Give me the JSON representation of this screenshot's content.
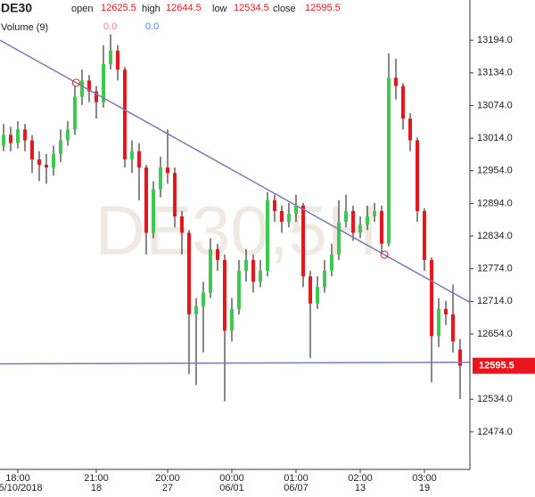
{
  "chart_data": {
    "type": "candlestick",
    "symbol": "DE30",
    "watermark": "DE30,5H",
    "header": {
      "open_label": "open",
      "open": 12625.5,
      "high_label": "high",
      "high": 12644.5,
      "low_label": "low",
      "low": 12534.5,
      "close_label": "close",
      "close": 12595.5
    },
    "volume": {
      "label": "Volume (9)",
      "values": [
        {
          "value": 0,
          "label": "0.0"
        },
        {
          "value": 0,
          "label": "0.0"
        }
      ]
    },
    "price_tag": 12595.5,
    "up_color": "#3dc951",
    "down_color": "#e8161a",
    "ylim": [
      12405,
      13268
    ],
    "yticks": [
      {
        "value": 13194,
        "label": "13194.0"
      },
      {
        "value": 13134,
        "label": "13134.0"
      },
      {
        "value": 13074,
        "label": "13074.0"
      },
      {
        "value": 13014,
        "label": "13014.0"
      },
      {
        "value": 12954,
        "label": "12954.0"
      },
      {
        "value": 12894,
        "label": "12894.0"
      },
      {
        "value": 12834,
        "label": "12834.0"
      },
      {
        "value": 12774,
        "label": "12774.0"
      },
      {
        "value": 12714,
        "label": "12714.0"
      },
      {
        "value": 12654,
        "label": "12654.0"
      },
      {
        "value": 12534,
        "label": "12534.0"
      },
      {
        "value": 12474,
        "label": "12474.0"
      }
    ],
    "categories": [
      null,
      null,
      {
        "time": "18:00",
        "date": "05/10/2018"
      },
      null,
      null,
      null,
      null,
      null,
      null,
      null,
      null,
      null,
      null,
      {
        "time": "21:00",
        "date": "18"
      },
      null,
      null,
      null,
      null,
      null,
      null,
      null,
      null,
      null,
      {
        "time": "20:00",
        "date": "27"
      },
      null,
      null,
      null,
      null,
      null,
      null,
      null,
      null,
      {
        "time": "00:00",
        "date": "06/01"
      },
      null,
      null,
      null,
      null,
      null,
      null,
      null,
      null,
      {
        "time": "01:00",
        "date": "06/07"
      },
      null,
      null,
      null,
      null,
      null,
      null,
      null,
      null,
      {
        "time": "02:00",
        "date": "13"
      },
      null,
      null,
      null,
      null,
      null,
      null,
      null,
      null,
      {
        "time": "03:00",
        "date": "19"
      },
      null,
      null,
      null,
      null,
      null
    ],
    "open": [
      13000,
      13020,
      13005,
      13030,
      13010,
      12975,
      12965,
      12960,
      12985,
      13010,
      13030,
      13090,
      13120,
      13100,
      13080,
      13150,
      13175,
      13140,
      12975,
      12990,
      12960,
      12840,
      12920,
      12960,
      12950,
      12870,
      12840,
      12690,
      12705,
      12730,
      12810,
      12790,
      12660,
      12700,
      12770,
      12790,
      12750,
      12770,
      12900,
      12880,
      12860,
      12875,
      12890,
      12760,
      12710,
      12740,
      12770,
      12800,
      12860,
      12880,
      12840,
      12855,
      12870,
      12880,
      12820,
      13125,
      13110,
      13050,
      13010,
      12880,
      12790,
      12650,
      12700,
      12690,
      12625.5
    ],
    "high": [
      13040,
      13035,
      13045,
      13040,
      13020,
      12990,
      12985,
      13000,
      13030,
      13045,
      13110,
      13140,
      13130,
      13110,
      13185,
      13205,
      13185,
      13145,
      13010,
      13005,
      12965,
      12935,
      12980,
      13030,
      12960,
      12880,
      12845,
      12720,
      12750,
      12830,
      12820,
      12800,
      12720,
      12790,
      12810,
      12800,
      12790,
      12915,
      12910,
      12890,
      12895,
      12910,
      12895,
      12770,
      12760,
      12790,
      12820,
      12900,
      12910,
      12890,
      12870,
      12890,
      12895,
      12890,
      13170,
      13160,
      13115,
      13060,
      13015,
      12885,
      12795,
      12720,
      12715,
      12745,
      12644.5
    ],
    "low": [
      12990,
      12990,
      12995,
      12990,
      12950,
      12935,
      12930,
      12945,
      12970,
      13000,
      13020,
      13075,
      13080,
      13050,
      13070,
      13140,
      13120,
      12960,
      12950,
      12900,
      12800,
      12830,
      12905,
      12930,
      12850,
      12800,
      12580,
      12560,
      12620,
      12720,
      12770,
      12530,
      12640,
      12690,
      12750,
      12730,
      12740,
      12760,
      12860,
      12840,
      12850,
      12860,
      12740,
      12610,
      12700,
      12730,
      12760,
      12790,
      12850,
      12825,
      12830,
      12845,
      12860,
      12805,
      12815,
      13085,
      13030,
      12990,
      12860,
      12770,
      12565,
      12630,
      12670,
      12620,
      12534.5
    ],
    "close": [
      13020,
      13005,
      13030,
      13010,
      12975,
      12965,
      12960,
      12985,
      13010,
      13030,
      13090,
      13120,
      13100,
      13080,
      13150,
      13175,
      13140,
      12975,
      12990,
      12960,
      12840,
      12920,
      12960,
      12950,
      12870,
      12840,
      12690,
      12705,
      12730,
      12810,
      12790,
      12660,
      12700,
      12770,
      12790,
      12750,
      12770,
      12900,
      12880,
      12860,
      12875,
      12890,
      12760,
      12710,
      12740,
      12770,
      12800,
      12860,
      12880,
      12840,
      12855,
      12870,
      12880,
      12820,
      13125,
      13110,
      13050,
      13010,
      12880,
      12790,
      12650,
      12700,
      12690,
      12640,
      12595.5
    ],
    "trend_lines": [
      {
        "from": 13194,
        "to": 12712,
        "color": "#7b78b8"
      },
      {
        "from": 12599,
        "to": 12602,
        "color": "#7b78b8"
      }
    ]
  }
}
